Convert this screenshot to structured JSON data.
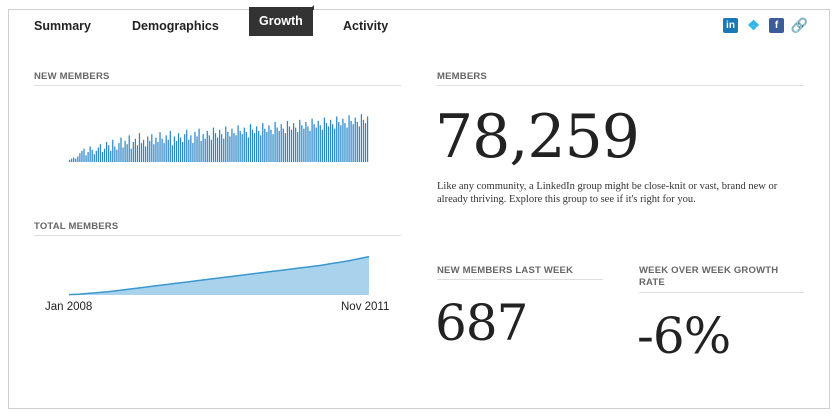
{
  "tabs": [
    {
      "label": "Summary",
      "active": false
    },
    {
      "label": "Demographics",
      "active": false
    },
    {
      "label": "Growth",
      "active": true
    },
    {
      "label": "Activity",
      "active": false
    }
  ],
  "share": {
    "linkedin_icon": "in",
    "twitter_icon": "twitter-bird",
    "facebook_icon": "f",
    "link_icon": "chain-link"
  },
  "new_members": {
    "label": "NEW MEMBERS",
    "bar_color": "#2a86c8"
  },
  "total_members": {
    "label": "TOTAL MEMBERS",
    "start_label": "Jan 2008",
    "end_label": "Nov 2011",
    "fill_color": "#a9d3ec",
    "line_color": "#3a97d0"
  },
  "members": {
    "label": "MEMBERS",
    "value": "78,259",
    "description": "Like any community, a LinkedIn group might be close-knit or vast, brand new or already thriving. Explore this group to see if it's right for you."
  },
  "new_last_week": {
    "label": "NEW MEMBERS LAST WEEK",
    "value": "687"
  },
  "wow_growth": {
    "label": "WEEK OVER WEEK GROWTH RATE",
    "value": "-6%"
  },
  "chart_data": [
    {
      "type": "bar",
      "title": "NEW MEMBERS",
      "values": [
        2,
        3,
        4,
        3,
        5,
        8,
        10,
        12,
        6,
        9,
        14,
        11,
        7,
        10,
        13,
        16,
        9,
        12,
        18,
        15,
        10,
        20,
        14,
        11,
        17,
        22,
        13,
        19,
        16,
        24,
        12,
        18,
        21,
        15,
        26,
        17,
        20,
        14,
        23,
        19,
        25,
        16,
        22,
        18,
        27,
        21,
        17,
        24,
        20,
        28,
        15,
        23,
        19,
        26,
        22,
        18,
        25,
        29,
        20,
        24,
        17,
        27,
        23,
        30,
        19,
        25,
        21,
        28,
        24,
        20,
        31,
        26,
        22,
        29,
        25,
        21,
        32,
        27,
        23,
        30,
        26,
        24,
        33,
        28,
        25,
        31,
        27,
        22,
        34,
        29,
        26,
        32,
        28,
        24,
        35,
        30,
        27,
        33,
        29,
        25,
        36,
        31,
        28,
        34,
        30,
        26,
        37,
        32,
        29,
        35,
        31,
        27,
        38,
        33,
        30,
        36,
        32,
        28,
        39,
        34,
        31,
        37,
        33,
        29,
        40,
        35,
        32,
        38,
        34,
        30,
        41,
        36,
        33,
        39,
        35,
        31,
        42,
        37,
        34,
        40,
        36,
        32,
        43,
        38,
        35,
        41
      ],
      "ylim": [
        0,
        45
      ]
    },
    {
      "type": "area",
      "title": "TOTAL MEMBERS",
      "x_start": "Jan 2008",
      "x_end": "Nov 2011",
      "values": [
        1,
        2,
        4,
        6,
        8,
        11,
        14,
        17,
        20,
        23,
        26,
        29,
        32,
        35,
        38,
        41,
        44,
        47,
        50,
        53,
        56,
        59,
        62,
        65,
        68,
        71,
        74,
        78,
        82,
        86,
        91,
        96
      ],
      "ylim": [
        0,
        100
      ]
    }
  ]
}
